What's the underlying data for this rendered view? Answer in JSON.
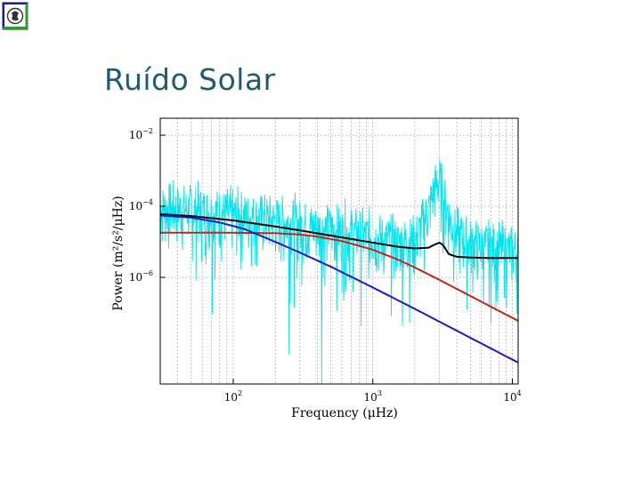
{
  "slide": {
    "title": "Ruído Solar",
    "logo_icon": "university-seal-icon"
  },
  "colors": {
    "title": "#1f5c70",
    "noise": "#00e5ee",
    "total_fit": "#000000",
    "component_red": "#cc2211",
    "component_blue": "#1a1ad0",
    "grid": "#9a9a9a",
    "logo_frame": "#1a1aa8",
    "logo_accent": "#2e9a2e"
  },
  "chart_data": {
    "type": "line",
    "title": "",
    "xlabel": "Frequency (μHz)",
    "ylabel": "Power (m²/s²/μHz)",
    "x_scale": "log",
    "y_scale": "log",
    "xlim": [
      30,
      11000
    ],
    "ylim": [
      1e-09,
      0.03
    ],
    "grid": true,
    "legend": "none",
    "x_ticks": [
      {
        "value": 100,
        "base": "10",
        "exp": "2"
      },
      {
        "value": 1000,
        "base": "10",
        "exp": "3"
      },
      {
        "value": 10000,
        "base": "10",
        "exp": "4"
      }
    ],
    "y_ticks": [
      {
        "value": 0.01,
        "base": "10",
        "exp": "−2"
      },
      {
        "value": 0.0001,
        "base": "10",
        "exp": "−4"
      },
      {
        "value": 1e-06,
        "base": "10",
        "exp": "−6"
      }
    ],
    "series": [
      {
        "kind": "noise",
        "color": "#00e5ee",
        "x": [
          30,
          40,
          60,
          100,
          200,
          400,
          700,
          1000,
          1500,
          2000,
          2500,
          2800,
          3000,
          3300,
          3800,
          5000,
          7000,
          11000
        ],
        "y": [
          0.0003,
          0.00028,
          0.00025,
          0.00019,
          0.00013,
          8e-05,
          6e-05,
          4.5e-05,
          3.2e-05,
          3.5e-05,
          0.00025,
          0.0012,
          0.0018,
          0.0004,
          6e-05,
          3e-05,
          2.2e-05,
          1.8e-05
        ]
      },
      {
        "kind": "total-fit",
        "color": "#000000",
        "x": [
          30,
          50,
          100,
          200,
          300,
          500,
          800,
          1000,
          1500,
          2000,
          2500,
          2800,
          3000,
          3200,
          3500,
          4000,
          5000,
          7000,
          11000
        ],
        "y": [
          6e-05,
          5.3e-05,
          4e-05,
          2.7e-05,
          2.1e-05,
          1.5e-05,
          1.1e-05,
          9.5e-06,
          7.3e-06,
          6.5e-06,
          6.8e-06,
          8.5e-06,
          9.5e-06,
          8e-06,
          4.5e-06,
          3.8e-06,
          3.6e-06,
          3.5e-06,
          3.5e-06
        ]
      },
      {
        "kind": "component",
        "color": "#cc2211",
        "x": [
          30,
          100,
          200,
          300,
          400,
          600,
          1000,
          1500,
          2000,
          3000,
          5000,
          7000,
          11000
        ],
        "y": [
          1.8e-05,
          1.8e-05,
          1.75e-05,
          1.6e-05,
          1.4e-05,
          1.05e-05,
          6e-06,
          3.2e-06,
          1.9e-06,
          8.5e-07,
          3e-07,
          1.5e-07,
          6e-08
        ]
      },
      {
        "kind": "component",
        "color": "#1a1ad0",
        "x": [
          30,
          50,
          80,
          120,
          200,
          300,
          500,
          1000,
          2000,
          5000,
          11000
        ],
        "y": [
          5.5e-05,
          4.8e-05,
          3.5e-05,
          2.3e-05,
          1e-05,
          5e-06,
          2e-06,
          5.2e-07,
          1.3e-07,
          2e-08,
          4e-09
        ]
      }
    ]
  }
}
